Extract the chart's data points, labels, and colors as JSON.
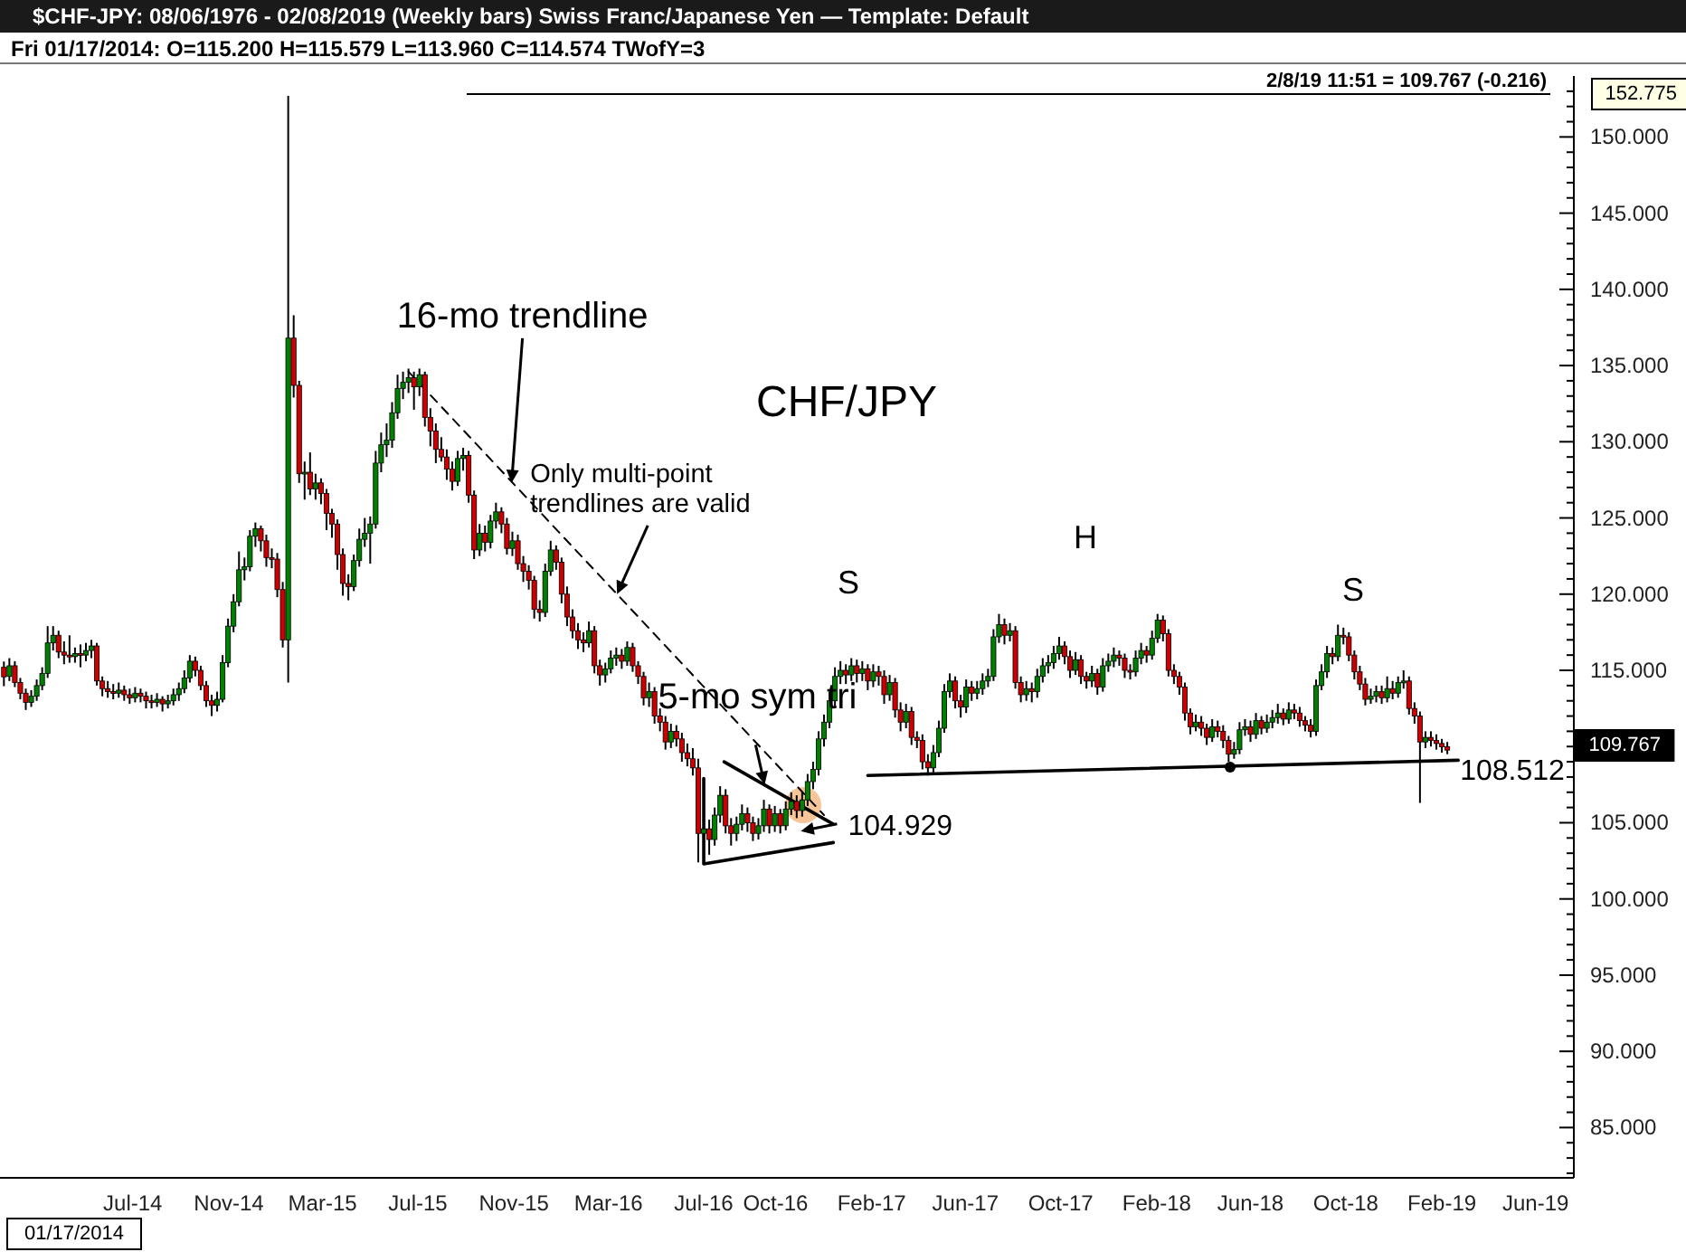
{
  "chart_data": {
    "type": "candlestick",
    "title": "$CHF-JPY:  08/06/1976 - 02/08/2019  (Weekly bars)   Swiss Franc/Japanese Yen  —  Template: Default",
    "subtitle": "Fri    01/17/2014:  O=115.200  H=115.579  L=113.960  C=114.574  TWofY=3",
    "colors": [
      "#cc0000",
      "#008000",
      "#cc0000",
      "#cc0000",
      "#cc0000",
      "#008000",
      "#008000",
      "#008000",
      "#008000",
      "#008000",
      "#cc0000",
      "#cc0000",
      "#cc0000",
      "#008000",
      "#cc0000",
      "#008000",
      "#008000",
      "#cc0000",
      "#cc0000",
      "#cc0000",
      "#cc0000",
      "#008000",
      "#cc0000",
      "#cc0000",
      "#008000",
      "#cc0000",
      "#cc0000",
      "#cc0000",
      "#008000",
      "#cc0000",
      "#008000",
      "#008000",
      "#008000",
      "#008000",
      "#008000",
      "#cc0000",
      "#cc0000",
      "#cc0000",
      "#cc0000",
      "#008000",
      "#008000",
      "#008000",
      "#008000",
      "#008000",
      "#008000",
      "#008000",
      "#008000",
      "#cc0000",
      "#cc0000",
      "#cc0000",
      "#cc0000",
      "#cc0000",
      "#008000",
      "#cc0000",
      "#cc0000",
      "#008000",
      "#cc0000",
      "#008000",
      "#cc0000",
      "#cc0000",
      "#cc0000",
      "#cc0000",
      "#cc0000",
      "#cc0000",
      "#008000",
      "#008000",
      "#008000",
      "#008000",
      "#008000",
      "#008000",
      "#008000",
      "#008000",
      "#008000",
      "#008000",
      "#008000",
      "#cc0000",
      "#008000",
      "#cc0000",
      "#cc0000",
      "#cc0000",
      "#cc0000",
      "#cc0000",
      "#cc0000",
      "#008000",
      "#008000",
      "#cc0000",
      "#cc0000",
      "#008000",
      "#cc0000",
      "#008000",
      "#008000",
      "#cc0000",
      "#cc0000",
      "#008000",
      "#cc0000",
      "#cc0000",
      "#cc0000",
      "#cc0000",
      "#cc0000",
      "#008000",
      "#008000",
      "#cc0000",
      "#cc0000",
      "#cc0000",
      "#cc0000",
      "#cc0000",
      "#cc0000",
      "#008000",
      "#cc0000",
      "#cc0000",
      "#008000",
      "#008000",
      "#008000",
      "#cc0000",
      "#008000",
      "#cc0000",
      "#cc0000",
      "#cc0000",
      "#008000",
      "#cc0000",
      "#cc0000",
      "#cc0000",
      "#008000",
      "#cc0000",
      "#cc0000",
      "#cc0000",
      "#cc0000",
      "#cc0000",
      "#008000",
      "#cc0000",
      "#008000",
      "#008000",
      "#cc0000",
      "#cc0000",
      "#008000",
      "#008000",
      "#cc0000",
      "#cc0000",
      "#008000",
      "#008000",
      "#cc0000",
      "#008000",
      "#cc0000",
      "#008000",
      "#008000",
      "#cc0000",
      "#008000",
      "#008000",
      "#008000",
      "#008000",
      "#008000",
      "#008000",
      "#008000",
      "#008000",
      "#cc0000",
      "#008000",
      "#cc0000",
      "#008000",
      "#cc0000",
      "#008000",
      "#cc0000",
      "#cc0000",
      "#008000",
      "#cc0000",
      "#cc0000",
      "#008000",
      "#cc0000",
      "#cc0000",
      "#cc0000",
      "#cc0000",
      "#008000",
      "#008000",
      "#008000",
      "#008000",
      "#cc0000",
      "#cc0000",
      "#008000",
      "#cc0000",
      "#008000",
      "#008000",
      "#008000",
      "#008000",
      "#008000",
      "#cc0000",
      "#008000",
      "#cc0000",
      "#cc0000",
      "#008000",
      "#cc0000",
      "#008000",
      "#008000",
      "#008000",
      "#008000",
      "#008000",
      "#cc0000",
      "#cc0000",
      "#008000",
      "#cc0000",
      "#cc0000",
      "#008000",
      "#cc0000",
      "#008000",
      "#008000",
      "#008000",
      "#cc0000",
      "#cc0000",
      "#cc0000",
      "#008000",
      "#008000",
      "#cc0000",
      "#008000",
      "#008000",
      "#cc0000",
      "#cc0000",
      "#cc0000",
      "#cc0000",
      "#cc0000",
      "#cc0000",
      "#008000",
      "#cc0000",
      "#cc0000",
      "#008000",
      "#cc0000",
      "#cc0000",
      "#cc0000",
      "#008000",
      "#008000",
      "#008000",
      "#cc0000",
      "#008000",
      "#cc0000",
      "#008000",
      "#008000",
      "#008000",
      "#cc0000",
      "#008000",
      "#cc0000",
      "#cc0000",
      "#cc0000",
      "#cc0000",
      "#008000",
      "#008000",
      "#008000",
      "#cc0000",
      "#008000",
      "#cc0000",
      "#cc0000",
      "#cc0000",
      "#cc0000",
      "#cc0000",
      "#008000",
      "#008000",
      "#cc0000",
      "#008000",
      "#cc0000",
      "#008000",
      "#008000",
      "#cc0000",
      "#cc0000",
      "#cc0000",
      "#008000",
      "#cc0000",
      "#cc0000",
      "#cc0000",
      "#cc0000"
    ],
    "xlim": [
      "2014-01-12",
      "2019-07-20"
    ],
    "ylim": [
      81.7,
      154
    ],
    "xticks": [
      {
        "value": "2014-07-01",
        "label": "Jul-14"
      },
      {
        "value": "2014-11-01",
        "label": "Nov-14"
      },
      {
        "value": "2015-03-01",
        "label": "Mar-15"
      },
      {
        "value": "2015-07-01",
        "label": "Jul-15"
      },
      {
        "value": "2015-11-01",
        "label": "Nov-15"
      },
      {
        "value": "2016-03-01",
        "label": "Mar-16"
      },
      {
        "value": "2016-07-01",
        "label": "Jul-16"
      },
      {
        "value": "2016-10-01",
        "label": "Oct-16"
      },
      {
        "value": "2017-02-01",
        "label": "Feb-17"
      },
      {
        "value": "2017-06-01",
        "label": "Jun-17"
      },
      {
        "value": "2017-10-01",
        "label": "Oct-17"
      },
      {
        "value": "2018-02-01",
        "label": "Feb-18"
      },
      {
        "value": "2018-06-01",
        "label": "Jun-18"
      },
      {
        "value": "2018-10-01",
        "label": "Oct-18"
      },
      {
        "value": "2019-02-01",
        "label": "Feb-19"
      },
      {
        "value": "2019-06-01",
        "label": "Jun-19"
      }
    ],
    "yticks": [
      {
        "value": 82,
        "label": null
      },
      {
        "value": 83,
        "label": null
      },
      {
        "value": 84,
        "label": null
      },
      {
        "value": 85,
        "label": "85.000"
      },
      {
        "value": 86,
        "label": null
      },
      {
        "value": 87,
        "label": null
      },
      {
        "value": 88,
        "label": null
      },
      {
        "value": 89,
        "label": null
      },
      {
        "value": 90,
        "label": "90.000"
      },
      {
        "value": 91,
        "label": null
      },
      {
        "value": 92,
        "label": null
      },
      {
        "value": 93,
        "label": null
      },
      {
        "value": 94,
        "label": null
      },
      {
        "value": 95,
        "label": "95.000"
      },
      {
        "value": 96,
        "label": null
      },
      {
        "value": 97,
        "label": null
      },
      {
        "value": 98,
        "label": null
      },
      {
        "value": 99,
        "label": null
      },
      {
        "value": 100,
        "label": "100.000"
      },
      {
        "value": 101,
        "label": null
      },
      {
        "value": 102,
        "label": null
      },
      {
        "value": 103,
        "label": null
      },
      {
        "value": 104,
        "label": null
      },
      {
        "value": 105,
        "label": "105.000"
      },
      {
        "value": 106,
        "label": null
      },
      {
        "value": 107,
        "label": null
      },
      {
        "value": 108,
        "label": null
      },
      {
        "value": 109,
        "label": null
      },
      {
        "value": 110,
        "label": null
      },
      {
        "value": 111,
        "label": null
      },
      {
        "value": 112,
        "label": null
      },
      {
        "value": 113,
        "label": null
      },
      {
        "value": 114,
        "label": null
      },
      {
        "value": 115,
        "label": "115.000"
      },
      {
        "value": 116,
        "label": null
      },
      {
        "value": 117,
        "label": null
      },
      {
        "value": 118,
        "label": null
      },
      {
        "value": 119,
        "label": null
      },
      {
        "value": 120,
        "label": "120.000"
      },
      {
        "value": 121,
        "label": null
      },
      {
        "value": 122,
        "label": null
      },
      {
        "value": 123,
        "label": null
      },
      {
        "value": 124,
        "label": null
      },
      {
        "value": 125,
        "label": "125.000"
      },
      {
        "value": 126,
        "label": null
      },
      {
        "value": 127,
        "label": null
      },
      {
        "value": 128,
        "label": null
      },
      {
        "value": 129,
        "label": null
      },
      {
        "value": 130,
        "label": "130.000"
      },
      {
        "value": 131,
        "label": null
      },
      {
        "value": 132,
        "label": null
      },
      {
        "value": 133,
        "label": null
      },
      {
        "value": 134,
        "label": null
      },
      {
        "value": 135,
        "label": "135.000"
      },
      {
        "value": 136,
        "label": null
      },
      {
        "value": 137,
        "label": null
      },
      {
        "value": 138,
        "label": null
      },
      {
        "value": 139,
        "label": null
      },
      {
        "value": 140,
        "label": "140.000"
      },
      {
        "value": 141,
        "label": null
      },
      {
        "value": 142,
        "label": null
      },
      {
        "value": 143,
        "label": null
      },
      {
        "value": 144,
        "label": null
      },
      {
        "value": 145,
        "label": "145.000"
      },
      {
        "value": 146,
        "label": null
      },
      {
        "value": 147,
        "label": null
      },
      {
        "value": 148,
        "label": null
      },
      {
        "value": 149,
        "label": null
      },
      {
        "value": 150,
        "label": "150.000"
      },
      {
        "value": 151,
        "label": null
      },
      {
        "value": 152,
        "label": null
      },
      {
        "value": 153,
        "label": null
      }
    ],
    "x": [
      "2014-01-17",
      "2014-01-24",
      "2014-01-31",
      "2014-02-07",
      "2014-02-14",
      "2014-02-21",
      "2014-02-28",
      "2014-03-07",
      "2014-03-14",
      "2014-03-21",
      "2014-03-28",
      "2014-04-04",
      "2014-04-11",
      "2014-04-18",
      "2014-04-25",
      "2014-05-02",
      "2014-05-09",
      "2014-05-16",
      "2014-05-23",
      "2014-05-30",
      "2014-06-06",
      "2014-06-13",
      "2014-06-20",
      "2014-06-27",
      "2014-07-04",
      "2014-07-11",
      "2014-07-18",
      "2014-07-25",
      "2014-08-01",
      "2014-08-08",
      "2014-08-15",
      "2014-08-22",
      "2014-08-29",
      "2014-09-05",
      "2014-09-12",
      "2014-09-19",
      "2014-09-26",
      "2014-10-03",
      "2014-10-10",
      "2014-10-17",
      "2014-10-24",
      "2014-10-31",
      "2014-11-07",
      "2014-11-14",
      "2014-11-21",
      "2014-11-28",
      "2014-12-05",
      "2014-12-12",
      "2014-12-19",
      "2014-12-26",
      "2015-01-02",
      "2015-01-09",
      "2015-01-16",
      "2015-01-23",
      "2015-01-30",
      "2015-02-06",
      "2015-02-13",
      "2015-02-20",
      "2015-02-27",
      "2015-03-06",
      "2015-03-13",
      "2015-03-20",
      "2015-03-27",
      "2015-04-03",
      "2015-04-10",
      "2015-04-17",
      "2015-04-24",
      "2015-05-01",
      "2015-05-08",
      "2015-05-15",
      "2015-05-22",
      "2015-05-29",
      "2015-06-05",
      "2015-06-12",
      "2015-06-19",
      "2015-06-26",
      "2015-07-03",
      "2015-07-10",
      "2015-07-17",
      "2015-07-24",
      "2015-07-31",
      "2015-08-07",
      "2015-08-14",
      "2015-08-21",
      "2015-08-28",
      "2015-09-04",
      "2015-09-11",
      "2015-09-18",
      "2015-09-25",
      "2015-10-02",
      "2015-10-09",
      "2015-10-16",
      "2015-10-23",
      "2015-10-30",
      "2015-11-06",
      "2015-11-13",
      "2015-11-20",
      "2015-11-27",
      "2015-12-04",
      "2015-12-11",
      "2015-12-18",
      "2015-12-25",
      "2016-01-01",
      "2016-01-08",
      "2016-01-15",
      "2016-01-22",
      "2016-01-29",
      "2016-02-05",
      "2016-02-12",
      "2016-02-19",
      "2016-02-26",
      "2016-03-04",
      "2016-03-11",
      "2016-03-18",
      "2016-03-25",
      "2016-04-01",
      "2016-04-08",
      "2016-04-15",
      "2016-04-22",
      "2016-04-29",
      "2016-05-06",
      "2016-05-13",
      "2016-05-20",
      "2016-05-27",
      "2016-06-03",
      "2016-06-10",
      "2016-06-17",
      "2016-06-24",
      "2016-07-01",
      "2016-07-08",
      "2016-07-15",
      "2016-07-22",
      "2016-07-29",
      "2016-08-05",
      "2016-08-12",
      "2016-08-19",
      "2016-08-26",
      "2016-09-02",
      "2016-09-09",
      "2016-09-16",
      "2016-09-23",
      "2016-09-30",
      "2016-10-07",
      "2016-10-14",
      "2016-10-21",
      "2016-10-28",
      "2016-11-04",
      "2016-11-11",
      "2016-11-18",
      "2016-11-25",
      "2016-12-02",
      "2016-12-09",
      "2016-12-16",
      "2016-12-23",
      "2016-12-30",
      "2017-01-06",
      "2017-01-13",
      "2017-01-20",
      "2017-01-27",
      "2017-02-03",
      "2017-02-10",
      "2017-02-17",
      "2017-02-24",
      "2017-03-03",
      "2017-03-10",
      "2017-03-17",
      "2017-03-24",
      "2017-03-31",
      "2017-04-07",
      "2017-04-14",
      "2017-04-21",
      "2017-04-28",
      "2017-05-05",
      "2017-05-12",
      "2017-05-19",
      "2017-05-26",
      "2017-06-02",
      "2017-06-09",
      "2017-06-16",
      "2017-06-23",
      "2017-06-30",
      "2017-07-07",
      "2017-07-14",
      "2017-07-21",
      "2017-07-28",
      "2017-08-04",
      "2017-08-11",
      "2017-08-18",
      "2017-08-25",
      "2017-09-01",
      "2017-09-08",
      "2017-09-15",
      "2017-09-22",
      "2017-09-29",
      "2017-10-06",
      "2017-10-13",
      "2017-10-20",
      "2017-10-27",
      "2017-11-03",
      "2017-11-10",
      "2017-11-17",
      "2017-11-24",
      "2017-12-01",
      "2017-12-08",
      "2017-12-15",
      "2017-12-22",
      "2017-12-29",
      "2018-01-05",
      "2018-01-12",
      "2018-01-19",
      "2018-01-26",
      "2018-02-02",
      "2018-02-09",
      "2018-02-16",
      "2018-02-23",
      "2018-03-02",
      "2018-03-09",
      "2018-03-16",
      "2018-03-23",
      "2018-03-30",
      "2018-04-06",
      "2018-04-13",
      "2018-04-20",
      "2018-04-27",
      "2018-05-04",
      "2018-05-11",
      "2018-05-18",
      "2018-05-25",
      "2018-06-01",
      "2018-06-08",
      "2018-06-15",
      "2018-06-22",
      "2018-06-29",
      "2018-07-06",
      "2018-07-13",
      "2018-07-20",
      "2018-07-27",
      "2018-08-03",
      "2018-08-10",
      "2018-08-17",
      "2018-08-24",
      "2018-08-31",
      "2018-09-07",
      "2018-09-14",
      "2018-09-21",
      "2018-09-28",
      "2018-10-05",
      "2018-10-12",
      "2018-10-19",
      "2018-10-26",
      "2018-11-02",
      "2018-11-09",
      "2018-11-16",
      "2018-11-23",
      "2018-11-30",
      "2018-12-07",
      "2018-12-14",
      "2018-12-21",
      "2018-12-28",
      "2019-01-04",
      "2019-01-11",
      "2019-01-18",
      "2019-01-25",
      "2019-02-01",
      "2019-02-08"
    ],
    "ohlc": [
      [
        115.2,
        115.579,
        113.96,
        114.574
      ],
      [
        114.6,
        115.8,
        114.3,
        115.3
      ],
      [
        115.3,
        115.6,
        113.9,
        114.2
      ],
      [
        114.2,
        114.5,
        113.1,
        113.5
      ],
      [
        113.5,
        113.8,
        112.4,
        112.9
      ],
      [
        112.9,
        113.7,
        112.6,
        113.3
      ],
      [
        113.3,
        114.4,
        113.0,
        114.0
      ],
      [
        114.0,
        115.2,
        113.7,
        114.8
      ],
      [
        114.8,
        117.9,
        114.5,
        116.8
      ],
      [
        116.8,
        117.9,
        116.3,
        117.3
      ],
      [
        117.3,
        117.6,
        115.8,
        116.2
      ],
      [
        116.2,
        116.9,
        115.4,
        116.0
      ],
      [
        116.0,
        117.3,
        115.5,
        115.9
      ],
      [
        115.9,
        116.5,
        115.5,
        116.1
      ],
      [
        116.1,
        116.7,
        115.2,
        116.0
      ],
      [
        116.0,
        116.8,
        115.6,
        116.3
      ],
      [
        116.3,
        117.0,
        115.8,
        116.6
      ],
      [
        116.6,
        116.8,
        114.0,
        114.3
      ],
      [
        114.3,
        114.6,
        113.3,
        113.8
      ],
      [
        113.8,
        114.3,
        113.2,
        113.6
      ],
      [
        113.6,
        114.1,
        113.1,
        113.5
      ],
      [
        113.5,
        114.2,
        113.2,
        113.7
      ],
      [
        113.7,
        114.0,
        113.0,
        113.4
      ],
      [
        113.4,
        113.8,
        112.8,
        113.2
      ],
      [
        113.2,
        113.9,
        112.9,
        113.5
      ],
      [
        113.5,
        113.8,
        112.9,
        113.3
      ],
      [
        113.3,
        113.6,
        112.5,
        113.0
      ],
      [
        113.0,
        113.4,
        112.5,
        112.9
      ],
      [
        112.9,
        113.5,
        112.6,
        113.1
      ],
      [
        113.1,
        113.3,
        112.3,
        112.8
      ],
      [
        112.8,
        113.4,
        112.5,
        113.0
      ],
      [
        113.0,
        113.8,
        112.7,
        113.4
      ],
      [
        113.4,
        114.2,
        113.0,
        113.8
      ],
      [
        113.8,
        115.0,
        113.5,
        114.5
      ],
      [
        114.5,
        116.0,
        114.2,
        115.6
      ],
      [
        115.6,
        115.9,
        114.6,
        115.0
      ],
      [
        115.0,
        115.3,
        113.7,
        114.0
      ],
      [
        114.0,
        114.3,
        112.6,
        113.0
      ],
      [
        113.0,
        113.4,
        112.0,
        112.7
      ],
      [
        112.7,
        113.6,
        112.3,
        113.1
      ],
      [
        113.1,
        116.0,
        112.9,
        115.5
      ],
      [
        115.5,
        118.4,
        115.2,
        117.9
      ],
      [
        117.9,
        120.0,
        117.5,
        119.5
      ],
      [
        119.5,
        122.8,
        119.2,
        121.6
      ],
      [
        121.6,
        122.4,
        120.9,
        121.8
      ],
      [
        121.8,
        124.2,
        121.5,
        123.8
      ],
      [
        123.8,
        124.7,
        123.1,
        124.3
      ],
      [
        124.3,
        124.5,
        122.8,
        123.5
      ],
      [
        123.5,
        123.9,
        121.8,
        122.4
      ],
      [
        122.4,
        123.0,
        121.7,
        122.3
      ],
      [
        122.3,
        122.7,
        119.8,
        120.3
      ],
      [
        120.3,
        120.8,
        116.5,
        117.0
      ],
      [
        117.0,
        152.7,
        114.2,
        136.8
      ],
      [
        136.8,
        138.3,
        132.9,
        133.7
      ],
      [
        133.7,
        134.0,
        127.3,
        127.9
      ],
      [
        127.9,
        128.7,
        126.2,
        128.0
      ],
      [
        128.0,
        129.3,
        126.5,
        126.9
      ],
      [
        126.9,
        127.9,
        126.2,
        127.3
      ],
      [
        127.3,
        127.6,
        125.9,
        126.6
      ],
      [
        126.6,
        126.9,
        124.2,
        125.3
      ],
      [
        125.3,
        125.6,
        123.7,
        124.6
      ],
      [
        124.6,
        124.9,
        121.6,
        122.6
      ],
      [
        122.6,
        123.0,
        119.9,
        120.7
      ],
      [
        120.7,
        121.3,
        119.6,
        120.5
      ],
      [
        120.5,
        122.6,
        120.2,
        122.2
      ],
      [
        122.2,
        124.3,
        121.8,
        123.6
      ],
      [
        123.6,
        125.0,
        123.1,
        124.0
      ],
      [
        124.0,
        125.1,
        122.0,
        124.6
      ],
      [
        124.6,
        129.4,
        124.3,
        128.6
      ],
      [
        128.6,
        130.6,
        128.0,
        129.8
      ],
      [
        129.8,
        131.2,
        129.0,
        130.1
      ],
      [
        130.1,
        132.6,
        129.6,
        131.9
      ],
      [
        131.9,
        134.4,
        131.5,
        133.5
      ],
      [
        133.5,
        134.6,
        132.8,
        133.9
      ],
      [
        133.9,
        134.8,
        133.2,
        134.2
      ],
      [
        134.2,
        134.6,
        132.1,
        133.6
      ],
      [
        133.6,
        134.8,
        133.0,
        134.4
      ],
      [
        134.4,
        134.6,
        131.0,
        131.6
      ],
      [
        131.6,
        132.2,
        129.7,
        130.7
      ],
      [
        130.7,
        131.2,
        128.6,
        129.5
      ],
      [
        129.5,
        130.3,
        128.7,
        129.0
      ],
      [
        129.0,
        129.5,
        127.5,
        128.2
      ],
      [
        128.2,
        128.7,
        126.8,
        127.4
      ],
      [
        127.4,
        129.4,
        127.1,
        128.9
      ],
      [
        128.9,
        129.6,
        128.1,
        129.1
      ],
      [
        129.1,
        129.4,
        126.0,
        126.5
      ],
      [
        126.5,
        126.8,
        122.3,
        122.9
      ],
      [
        122.9,
        124.6,
        122.5,
        124.0
      ],
      [
        124.0,
        124.5,
        122.8,
        123.4
      ],
      [
        123.4,
        125.2,
        123.0,
        124.8
      ],
      [
        124.8,
        126.0,
        124.3,
        125.4
      ],
      [
        125.4,
        125.7,
        124.0,
        124.6
      ],
      [
        124.6,
        125.0,
        122.6,
        123.0
      ],
      [
        123.0,
        124.1,
        122.5,
        123.5
      ],
      [
        123.5,
        123.9,
        121.6,
        122.0
      ],
      [
        122.0,
        122.5,
        120.8,
        121.5
      ],
      [
        121.5,
        121.9,
        120.3,
        120.9
      ],
      [
        120.9,
        121.2,
        118.4,
        119.0
      ],
      [
        119.0,
        119.6,
        118.2,
        118.8
      ],
      [
        118.8,
        122.0,
        118.5,
        121.5
      ],
      [
        121.5,
        123.5,
        121.2,
        122.9
      ],
      [
        122.9,
        123.2,
        121.6,
        122.1
      ],
      [
        122.1,
        122.4,
        119.4,
        120.0
      ],
      [
        120.0,
        120.5,
        117.9,
        118.5
      ],
      [
        118.5,
        119.0,
        117.1,
        117.6
      ],
      [
        117.6,
        118.1,
        116.4,
        117.0
      ],
      [
        117.0,
        117.5,
        116.2,
        116.8
      ],
      [
        116.8,
        118.2,
        116.5,
        117.6
      ],
      [
        117.6,
        117.9,
        114.8,
        115.3
      ],
      [
        115.3,
        115.7,
        114.0,
        114.7
      ],
      [
        114.7,
        115.5,
        114.2,
        115.1
      ],
      [
        115.1,
        116.3,
        114.8,
        115.8
      ],
      [
        115.8,
        116.5,
        115.3,
        116.0
      ],
      [
        116.0,
        116.4,
        115.1,
        115.6
      ],
      [
        115.6,
        116.9,
        115.3,
        116.5
      ],
      [
        116.5,
        116.8,
        114.9,
        115.3
      ],
      [
        115.3,
        115.6,
        114.1,
        114.6
      ],
      [
        114.6,
        114.9,
        112.7,
        113.2
      ],
      [
        113.2,
        114.2,
        112.6,
        113.6
      ],
      [
        113.6,
        113.9,
        111.5,
        112.0
      ],
      [
        112.0,
        112.5,
        111.0,
        111.6
      ],
      [
        111.6,
        112.0,
        109.8,
        110.3
      ],
      [
        110.3,
        111.5,
        109.9,
        111.0
      ],
      [
        111.0,
        111.4,
        110.0,
        110.5
      ],
      [
        110.5,
        110.9,
        109.0,
        109.6
      ],
      [
        109.6,
        110.2,
        108.7,
        109.2
      ],
      [
        109.2,
        109.9,
        108.1,
        108.6
      ],
      [
        108.6,
        109.2,
        102.4,
        104.3
      ],
      [
        104.3,
        105.5,
        103.6,
        104.6
      ],
      [
        104.6,
        105.2,
        102.9,
        103.9
      ],
      [
        103.9,
        106.0,
        103.5,
        105.5
      ],
      [
        105.5,
        107.4,
        105.0,
        106.8
      ],
      [
        106.8,
        107.2,
        104.3,
        104.8
      ],
      [
        104.8,
        105.3,
        103.5,
        104.3
      ],
      [
        104.3,
        105.4,
        103.8,
        104.9
      ],
      [
        104.9,
        106.2,
        104.5,
        105.6
      ],
      [
        105.6,
        106.0,
        104.4,
        105.0
      ],
      [
        105.0,
        105.4,
        103.8,
        104.3
      ],
      [
        104.3,
        105.3,
        103.9,
        104.8
      ],
      [
        104.8,
        106.5,
        104.4,
        105.9
      ],
      [
        105.9,
        106.2,
        104.3,
        104.8
      ],
      [
        104.8,
        106.1,
        104.4,
        105.6
      ],
      [
        105.6,
        105.9,
        104.3,
        104.8
      ],
      [
        104.8,
        106.4,
        104.5,
        105.9
      ],
      [
        105.9,
        107.0,
        105.5,
        106.4
      ],
      [
        106.4,
        106.8,
        105.3,
        105.8
      ],
      [
        105.8,
        107.0,
        105.4,
        106.5
      ],
      [
        106.5,
        108.2,
        106.1,
        107.7
      ],
      [
        107.7,
        109.0,
        107.2,
        108.5
      ],
      [
        108.5,
        111.0,
        108.1,
        110.5
      ],
      [
        110.5,
        112.1,
        110.0,
        111.6
      ],
      [
        111.6,
        113.6,
        111.2,
        113.0
      ],
      [
        113.0,
        115.2,
        112.6,
        114.6
      ],
      [
        114.6,
        115.6,
        114.1,
        115.0
      ],
      [
        115.0,
        115.4,
        114.1,
        114.7
      ],
      [
        114.7,
        115.8,
        114.3,
        115.3
      ],
      [
        115.3,
        115.7,
        114.2,
        114.8
      ],
      [
        114.8,
        115.6,
        114.3,
        115.1
      ],
      [
        115.1,
        115.4,
        113.7,
        114.3
      ],
      [
        114.3,
        115.4,
        113.9,
        114.9
      ],
      [
        114.9,
        115.3,
        114.0,
        114.6
      ],
      [
        114.6,
        115.0,
        112.8,
        113.4
      ],
      [
        113.4,
        114.7,
        113.0,
        114.2
      ],
      [
        114.2,
        114.5,
        111.9,
        112.4
      ],
      [
        112.4,
        112.9,
        111.0,
        111.6
      ],
      [
        111.6,
        112.8,
        111.2,
        112.3
      ],
      [
        112.3,
        112.6,
        110.1,
        110.6
      ],
      [
        110.6,
        111.0,
        109.9,
        110.4
      ],
      [
        110.4,
        110.8,
        108.5,
        109.0
      ],
      [
        109.0,
        109.5,
        108.1,
        108.6
      ],
      [
        108.6,
        110.1,
        108.3,
        109.6
      ],
      [
        109.6,
        111.7,
        109.3,
        111.2
      ],
      [
        111.2,
        114.1,
        110.9,
        113.6
      ],
      [
        113.6,
        114.8,
        113.2,
        114.3
      ],
      [
        114.3,
        114.6,
        112.5,
        113.0
      ],
      [
        113.0,
        113.4,
        111.9,
        112.6
      ],
      [
        112.6,
        114.4,
        112.2,
        113.9
      ],
      [
        113.9,
        114.3,
        113.0,
        113.5
      ],
      [
        113.5,
        114.3,
        113.1,
        113.8
      ],
      [
        113.8,
        114.8,
        113.4,
        114.3
      ],
      [
        114.3,
        115.1,
        113.9,
        114.6
      ],
      [
        114.6,
        117.7,
        114.3,
        117.2
      ],
      [
        117.2,
        118.7,
        116.8,
        118.0
      ],
      [
        118.0,
        118.4,
        116.7,
        117.3
      ],
      [
        117.3,
        118.1,
        116.9,
        117.6
      ],
      [
        117.6,
        117.9,
        113.8,
        114.2
      ],
      [
        114.2,
        114.6,
        112.9,
        113.4
      ],
      [
        113.4,
        114.3,
        113.0,
        113.8
      ],
      [
        113.8,
        114.2,
        112.9,
        113.6
      ],
      [
        113.6,
        115.1,
        113.2,
        114.6
      ],
      [
        114.6,
        115.8,
        114.2,
        115.3
      ],
      [
        115.3,
        116.0,
        114.8,
        115.5
      ],
      [
        115.5,
        116.6,
        115.1,
        116.1
      ],
      [
        116.1,
        117.2,
        115.7,
        116.6
      ],
      [
        116.6,
        116.9,
        115.4,
        115.9
      ],
      [
        115.9,
        116.3,
        114.5,
        115.0
      ],
      [
        115.0,
        116.2,
        114.7,
        115.7
      ],
      [
        115.7,
        116.0,
        114.1,
        114.6
      ],
      [
        114.6,
        114.9,
        113.8,
        114.3
      ],
      [
        114.3,
        115.3,
        113.9,
        114.8
      ],
      [
        114.8,
        115.1,
        113.4,
        113.9
      ],
      [
        113.9,
        115.8,
        113.6,
        115.3
      ],
      [
        115.3,
        116.1,
        114.9,
        115.6
      ],
      [
        115.6,
        116.5,
        115.2,
        116.0
      ],
      [
        116.0,
        116.3,
        115.3,
        115.8
      ],
      [
        115.8,
        116.1,
        114.5,
        115.0
      ],
      [
        115.0,
        115.4,
        114.4,
        114.9
      ],
      [
        114.9,
        116.3,
        114.6,
        115.8
      ],
      [
        115.8,
        116.8,
        115.4,
        116.3
      ],
      [
        116.3,
        116.6,
        115.5,
        116.0
      ],
      [
        116.0,
        117.6,
        115.7,
        117.1
      ],
      [
        117.1,
        118.7,
        116.8,
        118.3
      ],
      [
        118.3,
        118.6,
        116.9,
        117.4
      ],
      [
        117.4,
        117.7,
        114.6,
        115.0
      ],
      [
        115.0,
        115.4,
        114.1,
        114.6
      ],
      [
        114.6,
        114.9,
        113.4,
        113.9
      ],
      [
        113.9,
        114.2,
        111.7,
        112.2
      ],
      [
        112.2,
        112.5,
        110.8,
        111.3
      ],
      [
        111.3,
        112.1,
        111.0,
        111.6
      ],
      [
        111.6,
        112.0,
        110.7,
        111.2
      ],
      [
        111.2,
        111.5,
        110.1,
        110.6
      ],
      [
        110.6,
        111.8,
        110.3,
        111.3
      ],
      [
        111.3,
        111.7,
        110.6,
        111.0
      ],
      [
        111.0,
        111.4,
        109.9,
        110.4
      ],
      [
        110.4,
        110.7,
        109.0,
        109.5
      ],
      [
        109.5,
        110.3,
        109.2,
        109.8
      ],
      [
        109.8,
        111.6,
        109.5,
        111.1
      ],
      [
        111.1,
        111.8,
        110.7,
        111.3
      ],
      [
        111.3,
        111.7,
        110.3,
        110.8
      ],
      [
        110.8,
        112.2,
        110.5,
        111.7
      ],
      [
        111.7,
        112.0,
        110.8,
        111.2
      ],
      [
        111.2,
        112.1,
        110.9,
        111.6
      ],
      [
        111.6,
        112.4,
        111.2,
        111.9
      ],
      [
        111.9,
        112.8,
        111.5,
        112.2
      ],
      [
        112.2,
        112.5,
        111.4,
        111.8
      ],
      [
        111.8,
        112.9,
        111.5,
        112.4
      ],
      [
        112.4,
        112.8,
        111.8,
        112.2
      ],
      [
        112.2,
        112.6,
        111.3,
        111.7
      ],
      [
        111.7,
        112.0,
        111.0,
        111.4
      ],
      [
        111.4,
        111.8,
        110.6,
        111.0
      ],
      [
        111.0,
        114.4,
        110.7,
        114.0
      ],
      [
        114.0,
        115.4,
        113.7,
        114.9
      ],
      [
        114.9,
        116.6,
        114.5,
        116.1
      ],
      [
        116.1,
        116.5,
        115.4,
        115.9
      ],
      [
        115.9,
        118.0,
        115.6,
        117.3
      ],
      [
        117.3,
        117.8,
        116.7,
        117.2
      ],
      [
        117.2,
        117.5,
        115.6,
        116.0
      ],
      [
        116.0,
        116.3,
        114.4,
        114.9
      ],
      [
        114.9,
        115.3,
        113.7,
        114.1
      ],
      [
        114.1,
        114.5,
        112.7,
        113.1
      ],
      [
        113.1,
        113.8,
        112.8,
        113.3
      ],
      [
        113.3,
        114.0,
        112.9,
        113.6
      ],
      [
        113.6,
        114.0,
        112.8,
        113.2
      ],
      [
        113.2,
        114.6,
        112.9,
        113.8
      ],
      [
        113.8,
        114.3,
        113.1,
        113.5
      ],
      [
        113.5,
        114.6,
        113.2,
        114.2
      ],
      [
        114.2,
        115.0,
        113.8,
        114.3
      ],
      [
        114.3,
        114.6,
        112.1,
        112.5
      ],
      [
        112.5,
        112.9,
        111.5,
        112.0
      ],
      [
        112.0,
        112.3,
        106.3,
        110.3
      ],
      [
        110.3,
        111.0,
        109.9,
        110.6
      ],
      [
        110.6,
        111.0,
        110.0,
        110.4
      ],
      [
        110.4,
        110.8,
        109.8,
        110.2
      ],
      [
        110.2,
        110.5,
        109.6,
        109.98
      ],
      [
        109.98,
        110.3,
        109.5,
        109.767
      ]
    ],
    "series": [
      {
        "type": "line",
        "color": "#000000",
        "line_style": "dashed",
        "x": [
          "2015-06-19",
          "2016-12-02"
        ],
        "values": [
          134.6,
          105.5
        ]
      },
      {
        "type": "line",
        "color": "#000000",
        "line_style": "solid",
        "x": [
          "2016-07-27",
          "2016-12-14"
        ],
        "values": [
          109.0,
          104.9
        ]
      },
      {
        "type": "line",
        "color": "#000000",
        "line_style": "solid",
        "x": [
          "2016-07-01",
          "2016-07-01",
          "2016-12-14"
        ],
        "values": [
          107.9,
          102.3,
          103.7
        ]
      },
      {
        "type": "line",
        "color": "#000000",
        "line_style": "solid",
        "x": [
          "2017-01-27",
          "2019-02-22"
        ],
        "values": [
          108.1,
          109.1
        ]
      }
    ],
    "annotations": [
      "2/8/19 11:51 = 109.767 (-0.216)",
      "152.775",
      "01/17/2014",
      "CHF/JPY",
      "S",
      "H",
      "S",
      "109.767",
      {
        "text": "16-mo trendline",
        "x": "2015-10-29",
        "y": 127.3
      },
      {
        "text": "Only multi-point trendlines are valid",
        "x": "2016-03-12",
        "y": 120.0
      },
      {
        "text": "5-mo sym tri",
        "x": "2016-09-17",
        "y": 107.5
      },
      {
        "text": "104.929",
        "x": "2016-12-14",
        "y": 104.929
      },
      {
        "text": "108.512",
        "x": "2019-02-15",
        "y": 108.512
      }
    ]
  }
}
